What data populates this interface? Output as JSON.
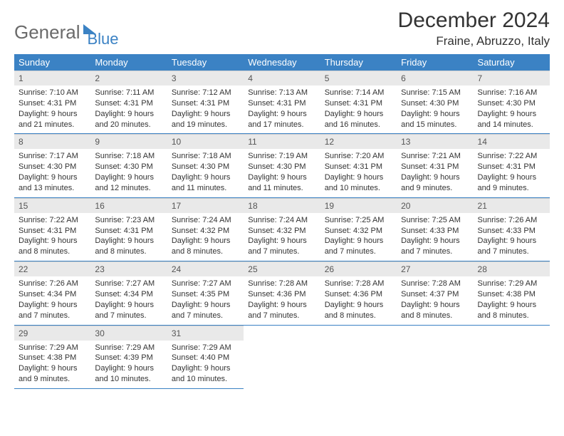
{
  "logo": {
    "word1": "General",
    "word2": "Blue"
  },
  "title": "December 2024",
  "location": "Fraine, Abruzzo, Italy",
  "header_bg": "#3b82c4",
  "daynum_bg": "#e9e9e9",
  "rule_color": "#3b82c4",
  "weekdays": [
    "Sunday",
    "Monday",
    "Tuesday",
    "Wednesday",
    "Thursday",
    "Friday",
    "Saturday"
  ],
  "weeks": [
    [
      {
        "n": "1",
        "sr": "Sunrise: 7:10 AM",
        "ss": "Sunset: 4:31 PM",
        "dl": "Daylight: 9 hours and 21 minutes."
      },
      {
        "n": "2",
        "sr": "Sunrise: 7:11 AM",
        "ss": "Sunset: 4:31 PM",
        "dl": "Daylight: 9 hours and 20 minutes."
      },
      {
        "n": "3",
        "sr": "Sunrise: 7:12 AM",
        "ss": "Sunset: 4:31 PM",
        "dl": "Daylight: 9 hours and 19 minutes."
      },
      {
        "n": "4",
        "sr": "Sunrise: 7:13 AM",
        "ss": "Sunset: 4:31 PM",
        "dl": "Daylight: 9 hours and 17 minutes."
      },
      {
        "n": "5",
        "sr": "Sunrise: 7:14 AM",
        "ss": "Sunset: 4:31 PM",
        "dl": "Daylight: 9 hours and 16 minutes."
      },
      {
        "n": "6",
        "sr": "Sunrise: 7:15 AM",
        "ss": "Sunset: 4:30 PM",
        "dl": "Daylight: 9 hours and 15 minutes."
      },
      {
        "n": "7",
        "sr": "Sunrise: 7:16 AM",
        "ss": "Sunset: 4:30 PM",
        "dl": "Daylight: 9 hours and 14 minutes."
      }
    ],
    [
      {
        "n": "8",
        "sr": "Sunrise: 7:17 AM",
        "ss": "Sunset: 4:30 PM",
        "dl": "Daylight: 9 hours and 13 minutes."
      },
      {
        "n": "9",
        "sr": "Sunrise: 7:18 AM",
        "ss": "Sunset: 4:30 PM",
        "dl": "Daylight: 9 hours and 12 minutes."
      },
      {
        "n": "10",
        "sr": "Sunrise: 7:18 AM",
        "ss": "Sunset: 4:30 PM",
        "dl": "Daylight: 9 hours and 11 minutes."
      },
      {
        "n": "11",
        "sr": "Sunrise: 7:19 AM",
        "ss": "Sunset: 4:30 PM",
        "dl": "Daylight: 9 hours and 11 minutes."
      },
      {
        "n": "12",
        "sr": "Sunrise: 7:20 AM",
        "ss": "Sunset: 4:31 PM",
        "dl": "Daylight: 9 hours and 10 minutes."
      },
      {
        "n": "13",
        "sr": "Sunrise: 7:21 AM",
        "ss": "Sunset: 4:31 PM",
        "dl": "Daylight: 9 hours and 9 minutes."
      },
      {
        "n": "14",
        "sr": "Sunrise: 7:22 AM",
        "ss": "Sunset: 4:31 PM",
        "dl": "Daylight: 9 hours and 9 minutes."
      }
    ],
    [
      {
        "n": "15",
        "sr": "Sunrise: 7:22 AM",
        "ss": "Sunset: 4:31 PM",
        "dl": "Daylight: 9 hours and 8 minutes."
      },
      {
        "n": "16",
        "sr": "Sunrise: 7:23 AM",
        "ss": "Sunset: 4:31 PM",
        "dl": "Daylight: 9 hours and 8 minutes."
      },
      {
        "n": "17",
        "sr": "Sunrise: 7:24 AM",
        "ss": "Sunset: 4:32 PM",
        "dl": "Daylight: 9 hours and 8 minutes."
      },
      {
        "n": "18",
        "sr": "Sunrise: 7:24 AM",
        "ss": "Sunset: 4:32 PM",
        "dl": "Daylight: 9 hours and 7 minutes."
      },
      {
        "n": "19",
        "sr": "Sunrise: 7:25 AM",
        "ss": "Sunset: 4:32 PM",
        "dl": "Daylight: 9 hours and 7 minutes."
      },
      {
        "n": "20",
        "sr": "Sunrise: 7:25 AM",
        "ss": "Sunset: 4:33 PM",
        "dl": "Daylight: 9 hours and 7 minutes."
      },
      {
        "n": "21",
        "sr": "Sunrise: 7:26 AM",
        "ss": "Sunset: 4:33 PM",
        "dl": "Daylight: 9 hours and 7 minutes."
      }
    ],
    [
      {
        "n": "22",
        "sr": "Sunrise: 7:26 AM",
        "ss": "Sunset: 4:34 PM",
        "dl": "Daylight: 9 hours and 7 minutes."
      },
      {
        "n": "23",
        "sr": "Sunrise: 7:27 AM",
        "ss": "Sunset: 4:34 PM",
        "dl": "Daylight: 9 hours and 7 minutes."
      },
      {
        "n": "24",
        "sr": "Sunrise: 7:27 AM",
        "ss": "Sunset: 4:35 PM",
        "dl": "Daylight: 9 hours and 7 minutes."
      },
      {
        "n": "25",
        "sr": "Sunrise: 7:28 AM",
        "ss": "Sunset: 4:36 PM",
        "dl": "Daylight: 9 hours and 7 minutes."
      },
      {
        "n": "26",
        "sr": "Sunrise: 7:28 AM",
        "ss": "Sunset: 4:36 PM",
        "dl": "Daylight: 9 hours and 8 minutes."
      },
      {
        "n": "27",
        "sr": "Sunrise: 7:28 AM",
        "ss": "Sunset: 4:37 PM",
        "dl": "Daylight: 9 hours and 8 minutes."
      },
      {
        "n": "28",
        "sr": "Sunrise: 7:29 AM",
        "ss": "Sunset: 4:38 PM",
        "dl": "Daylight: 9 hours and 8 minutes."
      }
    ],
    [
      {
        "n": "29",
        "sr": "Sunrise: 7:29 AM",
        "ss": "Sunset: 4:38 PM",
        "dl": "Daylight: 9 hours and 9 minutes."
      },
      {
        "n": "30",
        "sr": "Sunrise: 7:29 AM",
        "ss": "Sunset: 4:39 PM",
        "dl": "Daylight: 9 hours and 10 minutes."
      },
      {
        "n": "31",
        "sr": "Sunrise: 7:29 AM",
        "ss": "Sunset: 4:40 PM",
        "dl": "Daylight: 9 hours and 10 minutes."
      },
      null,
      null,
      null,
      null
    ]
  ]
}
